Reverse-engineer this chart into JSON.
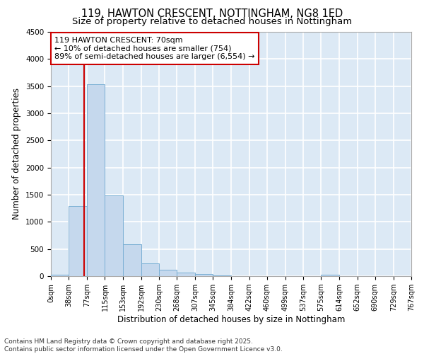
{
  "title_line1": "119, HAWTON CRESCENT, NOTTINGHAM, NG8 1ED",
  "title_line2": "Size of property relative to detached houses in Nottingham",
  "xlabel": "Distribution of detached houses by size in Nottingham",
  "ylabel": "Number of detached properties",
  "bar_color": "#c5d8ed",
  "bar_edge_color": "#7aafd4",
  "background_color": "#dce9f5",
  "grid_color": "white",
  "bins": [
    0,
    38,
    77,
    115,
    153,
    192,
    230,
    268,
    307,
    345,
    384,
    422,
    460,
    499,
    537,
    575,
    614,
    652,
    690,
    729,
    767
  ],
  "counts": [
    30,
    1290,
    3540,
    1490,
    590,
    240,
    115,
    65,
    35,
    15,
    5,
    0,
    0,
    0,
    0,
    20,
    0,
    0,
    0,
    0
  ],
  "vline_color": "#cc0000",
  "vline_x": 70,
  "annotation_text": "119 HAWTON CRESCENT: 70sqm\n← 10% of detached houses are smaller (754)\n89% of semi-detached houses are larger (6,554) →",
  "annotation_box_color": "white",
  "annotation_box_edge_color": "#cc0000",
  "ylim": [
    0,
    4500
  ],
  "yticks": [
    0,
    500,
    1000,
    1500,
    2000,
    2500,
    3000,
    3500,
    4000,
    4500
  ],
  "tick_labels": [
    "0sqm",
    "38sqm",
    "77sqm",
    "115sqm",
    "153sqm",
    "192sqm",
    "230sqm",
    "268sqm",
    "307sqm",
    "345sqm",
    "384sqm",
    "422sqm",
    "460sqm",
    "499sqm",
    "537sqm",
    "575sqm",
    "614sqm",
    "652sqm",
    "690sqm",
    "729sqm",
    "767sqm"
  ],
  "footnote": "Contains HM Land Registry data © Crown copyright and database right 2025.\nContains public sector information licensed under the Open Government Licence v3.0.",
  "title_fontsize": 10.5,
  "subtitle_fontsize": 9.5,
  "axis_label_fontsize": 8.5,
  "tick_fontsize": 7,
  "footnote_fontsize": 6.5,
  "annot_fontsize": 8
}
